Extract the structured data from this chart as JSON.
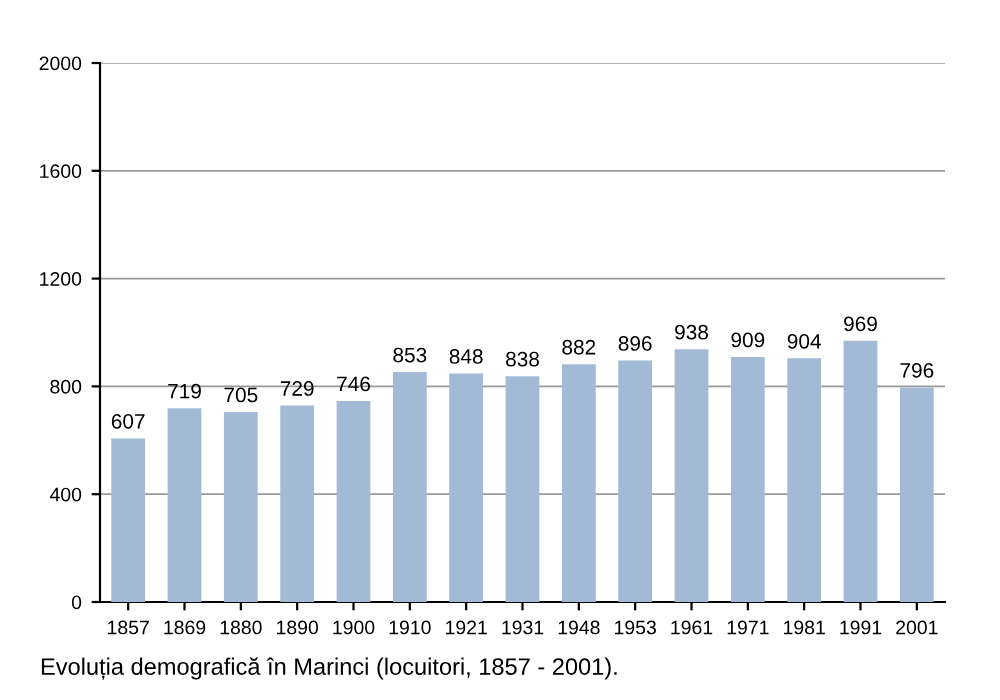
{
  "chart_data": {
    "type": "bar",
    "categories": [
      "1857",
      "1869",
      "1880",
      "1890",
      "1900",
      "1910",
      "1921",
      "1931",
      "1948",
      "1953",
      "1961",
      "1971",
      "1981",
      "1991",
      "2001"
    ],
    "values": [
      607,
      719,
      705,
      729,
      746,
      853,
      848,
      838,
      882,
      896,
      938,
      909,
      904,
      969,
      796
    ],
    "color": "#a3bad6",
    "ylim": [
      0,
      2000
    ],
    "yticks": [
      0,
      400,
      800,
      1200,
      1600,
      2000
    ],
    "grid": "y",
    "data_labels": true,
    "annotations": [
      "Evoluția demografică în Marinci (locuitori, 1857 - 2001)."
    ]
  }
}
